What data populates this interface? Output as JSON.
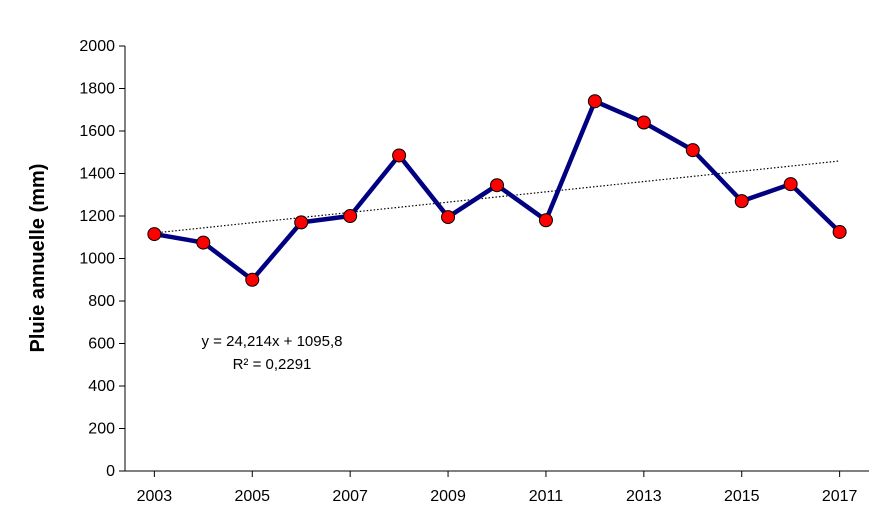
{
  "chart_data": {
    "type": "line",
    "title": "",
    "xlabel": "",
    "ylabel": "Pluie annuelle (mm)",
    "xlim": [
      2002.4,
      2017.6
    ],
    "ylim": [
      0,
      2000
    ],
    "yticks": [
      0,
      200,
      400,
      600,
      800,
      1000,
      1200,
      1400,
      1600,
      1800,
      2000
    ],
    "xticks": [
      2003,
      2005,
      2007,
      2009,
      2011,
      2013,
      2015,
      2017
    ],
    "xtick_labels": [
      "2003",
      "2005",
      "2007",
      "2009",
      "2011",
      "2013",
      "2015",
      "2017"
    ],
    "ytick_labels": [
      "0",
      "200",
      "400",
      "600",
      "800",
      "1000",
      "1200",
      "1400",
      "1600",
      "1800",
      "2000"
    ],
    "x": [
      2003,
      2004,
      2005,
      2006,
      2007,
      2008,
      2009,
      2010,
      2011,
      2012,
      2013,
      2014,
      2015,
      2016,
      2017
    ],
    "series": [
      {
        "values": [
          1115,
          1075,
          900,
          1170,
          1200,
          1485,
          1195,
          1345,
          1180,
          1740,
          1640,
          1510,
          1270,
          1350,
          1125
        ],
        "line_color": "#000080",
        "marker_color": "#ff0000"
      }
    ],
    "trendline": {
      "type": "linear",
      "slope": 24.214,
      "intercept": 1095.8,
      "x_index_start": 1,
      "x_index_end": 15,
      "style": "dotted",
      "color": "#000000"
    },
    "annotations": {
      "equation": "y = 24,214x + 1095,8",
      "r_squared": "R² = 0,2291"
    },
    "grid": false,
    "legend": "none"
  }
}
